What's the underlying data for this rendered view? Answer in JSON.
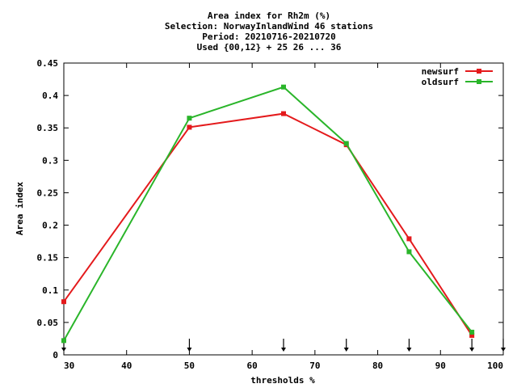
{
  "chart_data": {
    "type": "line",
    "title_lines": [
      "Area index  for Rh2m (%)",
      "Selection: NorwayInlandWind     46 stations",
      "Period: 20210716-20210720",
      "Used {00,12} + 25 26 ... 36"
    ],
    "xlabel": "thresholds %",
    "ylabel": "Area index",
    "xlim": [
      30,
      100
    ],
    "ylim": [
      0,
      0.45
    ],
    "x_ticks": [
      30,
      40,
      50,
      60,
      70,
      80,
      90,
      100
    ],
    "y_ticks": [
      0,
      0.05,
      0.1,
      0.15,
      0.2,
      0.25,
      0.3,
      0.35,
      0.4,
      0.45
    ],
    "x_tick_labels": [
      "30",
      "40",
      "50",
      "60",
      "70",
      "80",
      "90",
      "100"
    ],
    "y_tick_labels": [
      "0",
      "0.05",
      "0.1",
      "0.15",
      "0.2",
      "0.25",
      "0.3",
      "0.35",
      "0.4",
      "0.45"
    ],
    "threshold_markers": [
      30,
      50,
      65,
      75,
      85,
      95,
      100
    ],
    "legend_position": "top-right",
    "grid": false,
    "series": [
      {
        "name": "newsurf",
        "color": "#e41a1c",
        "x": [
          30,
          50,
          65,
          75,
          85,
          95
        ],
        "y": [
          0.082,
          0.351,
          0.372,
          0.324,
          0.179,
          0.03
        ]
      },
      {
        "name": "oldsurf",
        "color": "#2ab52a",
        "x": [
          30,
          50,
          65,
          75,
          85,
          95
        ],
        "y": [
          0.022,
          0.365,
          0.413,
          0.326,
          0.159,
          0.035
        ]
      }
    ]
  }
}
